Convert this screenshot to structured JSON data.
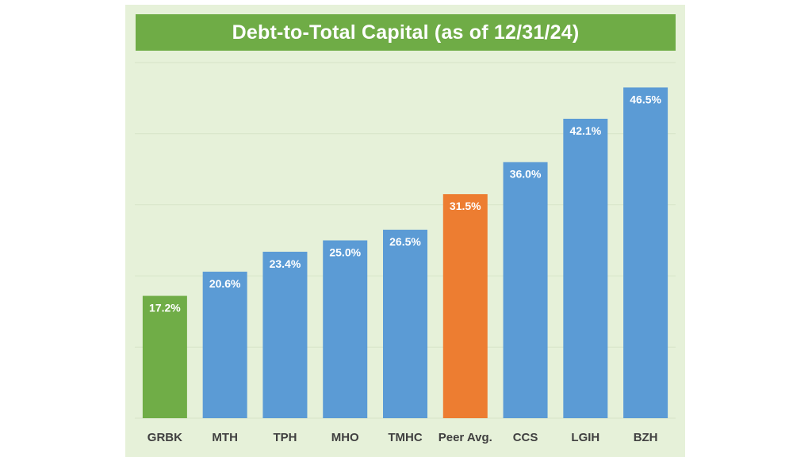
{
  "chart_data": {
    "type": "bar",
    "title": "Debt-to-Total Capital (as of 12/31/24)",
    "xlabel": "",
    "ylabel": "",
    "categories": [
      "GRBK",
      "MTH",
      "TPH",
      "MHO",
      "TMHC",
      "Peer Avg.",
      "CCS",
      "LGIH",
      "BZH"
    ],
    "values": [
      17.2,
      20.6,
      23.4,
      25.0,
      26.5,
      31.5,
      36.0,
      42.1,
      46.5
    ],
    "data_labels": [
      "17.2%",
      "20.6%",
      "23.4%",
      "25.0%",
      "26.5%",
      "31.5%",
      "36.0%",
      "42.1%",
      "46.5%"
    ],
    "bar_colors": [
      "#70ad47",
      "#5b9bd5",
      "#5b9bd5",
      "#5b9bd5",
      "#5b9bd5",
      "#ed7d31",
      "#5b9bd5",
      "#5b9bd5",
      "#5b9bd5"
    ],
    "ylim": [
      0,
      50
    ],
    "gridlines": [
      0,
      10,
      20,
      30,
      40,
      50
    ],
    "grid": true,
    "legend": "none"
  },
  "colors": {
    "panel_background": "#e6f1d9",
    "title_background": "#6fac46",
    "title_text": "#ffffff",
    "gridline": "#d6e4c7"
  }
}
